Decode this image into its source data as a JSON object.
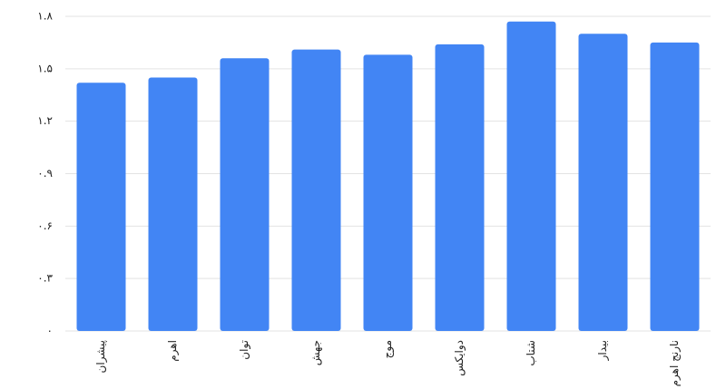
{
  "chart_data": {
    "type": "bar",
    "categories": [
      "پیشران",
      "اهرم",
      "توان",
      "جهش",
      "موج",
      "دوایکس",
      "شتاب",
      "بیدار",
      "نارنج اهرم"
    ],
    "values": [
      1.42,
      1.45,
      1.56,
      1.61,
      1.58,
      1.64,
      1.77,
      1.7,
      1.65
    ],
    "color": "#4285f4",
    "ylim": [
      0,
      1.8
    ],
    "yticks": [
      {
        "value": 0,
        "label": "۰"
      },
      {
        "value": 0.3,
        "label": "۰.۳"
      },
      {
        "value": 0.6,
        "label": "۰.۶"
      },
      {
        "value": 0.9,
        "label": "۰.۹"
      },
      {
        "value": 1.2,
        "label": "۱.۲"
      },
      {
        "value": 1.5,
        "label": "۱.۵"
      },
      {
        "value": 1.8,
        "label": "۱.۸"
      }
    ],
    "grid": true
  }
}
